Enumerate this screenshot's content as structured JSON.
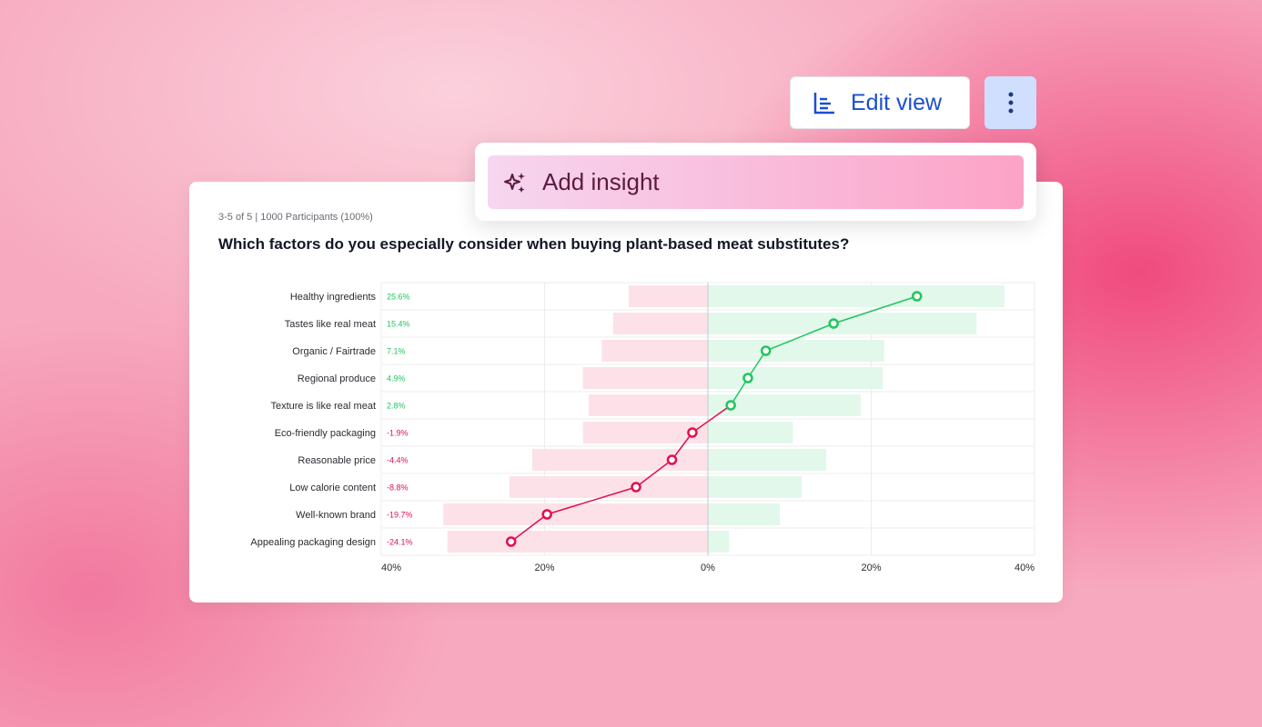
{
  "toolbar": {
    "edit_view_label": "Edit view",
    "edit_icon": "bar-chart-icon",
    "more_icon": "vertical-ellipsis-icon"
  },
  "popup": {
    "add_insight_label": "Add insight",
    "icon": "sparkles-icon"
  },
  "card": {
    "meta": "3-5 of 5 | 1000 Participants (100%)",
    "title": "Which factors do you especially consider when buying plant-based meat substitutes?"
  },
  "chart_data": {
    "type": "bar",
    "subtype": "diverging bar with net-value line",
    "categories": [
      "Healthy ingredients",
      "Tastes like real meat",
      "Organic / Fairtrade",
      "Regional produce",
      "Texture is like real meat",
      "Eco-friendly packaging",
      "Reasonable price",
      "Low calorie content",
      "Well-known brand",
      "Appealing packaging design"
    ],
    "series": [
      {
        "role": "negative",
        "values": [
          9.7,
          11.6,
          13.0,
          15.3,
          14.6,
          15.3,
          21.5,
          24.3,
          32.4,
          31.9
        ],
        "color": "#fde1e8"
      },
      {
        "role": "positive",
        "values": [
          36.3,
          32.9,
          21.6,
          21.4,
          18.7,
          10.4,
          14.5,
          11.5,
          8.8,
          2.6
        ],
        "color": "#e1f8ea"
      },
      {
        "role": "net",
        "values": [
          25.6,
          15.4,
          7.1,
          4.9,
          2.8,
          -1.9,
          -4.4,
          -8.8,
          -19.7,
          -24.1
        ],
        "labels": [
          "25.6%",
          "15.4%",
          "7.1%",
          "4.9%",
          "2.8%",
          "-1.9%",
          "-4.4%",
          "-8.8%",
          "-19.7%",
          "-24.1%"
        ],
        "positive_color": "#22c55e",
        "negative_color": "#e0104f"
      }
    ],
    "xlim": [
      -40,
      40
    ],
    "xticks": [
      "40%",
      "20%",
      "0%",
      "20%",
      "40%"
    ],
    "grid": true
  }
}
